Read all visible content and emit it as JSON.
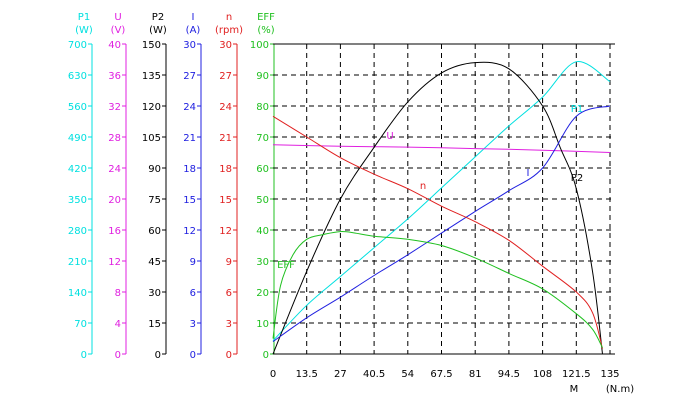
{
  "chart_data": {
    "type": "line",
    "x_axis": {
      "label_m": "M",
      "label_unit": "(N.m)",
      "ticks": [
        "0",
        "13.5",
        "27",
        "40.5",
        "54",
        "67.5",
        "81",
        "94.5",
        "108",
        "121.5",
        "135"
      ],
      "range": [
        0,
        135
      ]
    },
    "y_axes": [
      {
        "key": "P1",
        "name": "P1",
        "unit": "(W)",
        "color": "#00e0e0",
        "ticks": [
          "0",
          "70",
          "140",
          "210",
          "280",
          "350",
          "420",
          "490",
          "560",
          "630",
          "700"
        ]
      },
      {
        "key": "U",
        "name": "U",
        "unit": "(V)",
        "color": "#e020e0",
        "ticks": [
          "0",
          "4",
          "8",
          "12",
          "16",
          "20",
          "24",
          "28",
          "32",
          "36",
          "40"
        ]
      },
      {
        "key": "P2",
        "name": "P2",
        "unit": "(W)",
        "color": "#000000",
        "ticks": [
          "0",
          "15",
          "30",
          "45",
          "60",
          "75",
          "90",
          "105",
          "120",
          "135",
          "150"
        ]
      },
      {
        "key": "I",
        "name": "I",
        "unit": "(A)",
        "color": "#2020e0",
        "ticks": [
          "0",
          "3",
          "6",
          "9",
          "12",
          "15",
          "18",
          "21",
          "24",
          "27",
          "30"
        ]
      },
      {
        "key": "n",
        "name": "n",
        "unit": "(rpm)",
        "color": "#e02020",
        "ticks": [
          "0",
          "3",
          "6",
          "9",
          "12",
          "15",
          "18",
          "21",
          "24",
          "27",
          "30"
        ]
      },
      {
        "key": "EFF",
        "name": "EFF",
        "unit": "(%)",
        "color": "#20c020",
        "ticks": [
          "0",
          "10",
          "20",
          "30",
          "40",
          "50",
          "60",
          "70",
          "80",
          "90",
          "100"
        ]
      }
    ],
    "series": [
      {
        "key": "P1",
        "name": "P1",
        "color": "#00e0e0",
        "x": [
          0,
          13.5,
          27,
          40.5,
          54,
          67.5,
          81,
          94.5,
          108,
          121.5,
          135
        ],
        "values": [
          30,
          110,
          175,
          240,
          305,
          375,
          445,
          515,
          580,
          660,
          615
        ]
      },
      {
        "key": "U",
        "name": "U",
        "color": "#e020e0",
        "x": [
          0,
          27,
          54,
          81,
          108,
          135
        ],
        "values": [
          27.0,
          26.8,
          26.7,
          26.5,
          26.3,
          26.0
        ]
      },
      {
        "key": "P2",
        "name": "P2",
        "color": "#000000",
        "x": [
          0,
          13.5,
          27,
          40.5,
          54,
          67.5,
          81,
          94.5,
          108,
          115,
          121.5,
          128,
          132
        ],
        "values": [
          0,
          40,
          75,
          100,
          122,
          136,
          141,
          138,
          120,
          100,
          80,
          40,
          0
        ]
      },
      {
        "key": "I",
        "name": "I",
        "color": "#2020e0",
        "x": [
          0,
          13.5,
          27,
          40.5,
          54,
          67.5,
          81,
          94.5,
          108,
          121.5,
          135
        ],
        "values": [
          1.2,
          3.5,
          5.5,
          7.6,
          9.6,
          11.7,
          13.8,
          15.8,
          18.0,
          23.0,
          24.0
        ]
      },
      {
        "key": "n",
        "name": "n",
        "color": "#e02020",
        "x": [
          0,
          13.5,
          27,
          40.5,
          54,
          67.5,
          81,
          94.5,
          108,
          121.5,
          128,
          132
        ],
        "values": [
          23.0,
          21.0,
          19.0,
          17.4,
          16.0,
          14.3,
          12.8,
          11.0,
          8.5,
          6.0,
          4.0,
          0.5
        ]
      },
      {
        "key": "EFF",
        "name": "EFF",
        "color": "#20c020",
        "x": [
          0,
          3,
          8,
          13.5,
          20,
          27,
          33,
          40.5,
          54,
          67.5,
          81,
          94.5,
          108,
          121.5,
          128,
          132
        ],
        "values": [
          5,
          22,
          32,
          37,
          38.5,
          39.5,
          39,
          38,
          37,
          35,
          31,
          26,
          21,
          13,
          8,
          2
        ]
      }
    ],
    "series_labels": [
      "P1",
      "U",
      "P2",
      "I",
      "n",
      "EFF"
    ],
    "grid": true
  }
}
